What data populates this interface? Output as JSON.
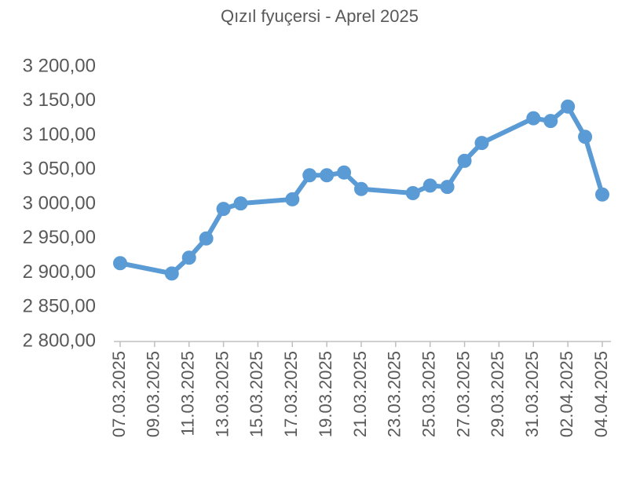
{
  "chart_data": {
    "type": "line",
    "title": "Qızıl fyuçersi - Aprel 2025",
    "x": [
      "07.03.2025",
      "10.03.2025",
      "11.03.2025",
      "12.03.2025",
      "13.03.2025",
      "14.03.2025",
      "17.03.2025",
      "18.03.2025",
      "19.03.2025",
      "20.03.2025",
      "21.03.2025",
      "24.03.2025",
      "25.03.2025",
      "26.03.2025",
      "27.03.2025",
      "28.03.2025",
      "31.03.2025",
      "01.04.2025",
      "02.04.2025",
      "03.04.2025",
      "04.04.2025"
    ],
    "series": [
      {
        "name": "Qızıl fyuçersi",
        "color": "#5b9bd5",
        "values": [
          2914,
          2899,
          2922,
          2950,
          2993,
          3001,
          3007,
          3042,
          3042,
          3046,
          3022,
          3016,
          3027,
          3025,
          3063,
          3089,
          3125,
          3121,
          3142,
          3098,
          3014
        ]
      }
    ],
    "xlim": [
      "07.03.2025",
      "04.04.2025"
    ],
    "xticks": [
      "07.03.2025",
      "09.03.2025",
      "11.03.2025",
      "13.03.2025",
      "15.03.2025",
      "17.03.2025",
      "19.03.2025",
      "21.03.2025",
      "23.03.2025",
      "25.03.2025",
      "27.03.2025",
      "29.03.2025",
      "31.03.2025",
      "02.04.2025",
      "04.04.2025"
    ],
    "ylim": [
      2800,
      3200
    ],
    "yticks": [
      {
        "value": 2800,
        "label": "2 800,00"
      },
      {
        "value": 2850,
        "label": "2 850,00"
      },
      {
        "value": 2900,
        "label": "2 900,00"
      },
      {
        "value": 2950,
        "label": "2 950,00"
      },
      {
        "value": 3000,
        "label": "3 000,00"
      },
      {
        "value": 3050,
        "label": "3 050,00"
      },
      {
        "value": 3100,
        "label": "3 100,00"
      },
      {
        "value": 3150,
        "label": "3 150,00"
      },
      {
        "value": 3200,
        "label": "3 200,00"
      }
    ],
    "grid": false
  }
}
